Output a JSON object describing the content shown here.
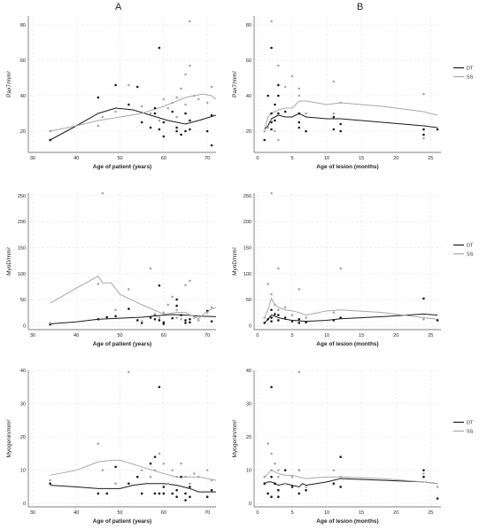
{
  "panels": {
    "left_letter": "A",
    "right_letter": "B"
  },
  "colors": {
    "DT": "#1a1a1a",
    "SS": "#a8a8a8",
    "grid": "#e6e6e6",
    "axis": "#555555",
    "text": "#222222"
  },
  "chart_data": [
    {
      "type": "scatter",
      "column": "A",
      "row": 1,
      "xlabel": "Age of patient (years)",
      "ylabel": "Pax7/mm²",
      "xlim": [
        29,
        72
      ],
      "ylim": [
        8,
        85
      ],
      "xticks": [
        30,
        40,
        50,
        60,
        70
      ],
      "yticks": [
        20,
        40,
        60,
        80
      ],
      "legend": null,
      "series": [
        {
          "name": "DT",
          "kind": "line",
          "x": [
            34,
            40,
            45,
            49,
            53,
            57,
            61,
            65,
            68,
            72
          ],
          "y": [
            15,
            23,
            30,
            33,
            32,
            29,
            26,
            24,
            26,
            29
          ]
        },
        {
          "name": "SS",
          "kind": "line",
          "x": [
            34,
            40,
            45,
            50,
            55,
            60,
            65,
            69,
            71,
            72
          ],
          "y": [
            20,
            23,
            26,
            28,
            30,
            34,
            39,
            41,
            40,
            38
          ]
        },
        {
          "name": "DT",
          "kind": "points",
          "x": [
            34,
            45,
            49,
            52,
            54,
            55,
            57,
            58,
            58,
            59,
            59,
            60,
            60,
            62,
            63,
            63,
            64,
            65,
            65,
            66,
            66,
            70,
            71,
            71
          ],
          "y": [
            15,
            39,
            46,
            35,
            45,
            25,
            22,
            30,
            33,
            67,
            21,
            17,
            25,
            31,
            20,
            22,
            18,
            20,
            30,
            21,
            26,
            20,
            29,
            12
          ]
        },
        {
          "name": "SS",
          "kind": "points",
          "x": [
            34,
            45,
            46,
            49,
            52,
            55,
            57,
            59,
            60,
            61,
            62,
            63,
            63,
            64,
            65,
            65,
            66,
            66,
            67,
            68,
            70,
            71
          ],
          "y": [
            20,
            23,
            28,
            31,
            46,
            34,
            30,
            26,
            38,
            33,
            36,
            28,
            39,
            44,
            35,
            52,
            82,
            57,
            40,
            38,
            36,
            45
          ]
        }
      ]
    },
    {
      "type": "scatter",
      "column": "B",
      "row": 1,
      "xlabel": "Age of lesion (months)",
      "ylabel": "Pax7/mm²",
      "xlim": [
        -0.5,
        26.5
      ],
      "ylim": [
        8,
        85
      ],
      "xticks": [
        0,
        5,
        10,
        15,
        20,
        25
      ],
      "yticks": [
        20,
        40,
        60,
        80
      ],
      "legend": "right",
      "series": [
        {
          "name": "DT",
          "kind": "line",
          "x": [
            1,
            1.5,
            2,
            2.5,
            3,
            4,
            5,
            6,
            7,
            10,
            12,
            18,
            24,
            26
          ],
          "y": [
            21,
            23,
            27,
            28,
            29,
            28,
            28,
            30,
            28,
            27,
            27,
            25,
            23,
            22
          ]
        },
        {
          "name": "SS",
          "kind": "line",
          "x": [
            1,
            1.5,
            2,
            2.5,
            3,
            4,
            5,
            6,
            7,
            10,
            12,
            18,
            24,
            26
          ],
          "y": [
            21,
            28,
            30,
            31,
            32,
            33,
            33,
            37,
            37,
            35,
            36,
            34,
            31,
            29
          ]
        },
        {
          "name": "DT",
          "kind": "points",
          "x": [
            1,
            1.5,
            2,
            2,
            2,
            2,
            2.5,
            2.5,
            3,
            3,
            3,
            4,
            6,
            6,
            6,
            7,
            11,
            11,
            12,
            12,
            24,
            24,
            26
          ],
          "y": [
            15,
            40,
            67,
            30,
            25,
            21,
            35,
            26,
            46,
            40,
            30,
            31,
            30,
            25,
            22,
            20,
            21,
            28,
            20,
            24,
            21,
            18,
            21
          ]
        },
        {
          "name": "SS",
          "kind": "points",
          "x": [
            1,
            1.5,
            2,
            2,
            2.5,
            3,
            3,
            4,
            5,
            6,
            6,
            7,
            11,
            11,
            12,
            24,
            24
          ],
          "y": [
            20,
            22,
            82,
            26,
            20,
            57,
            15,
            45,
            51,
            40,
            44,
            30,
            48,
            30,
            36,
            41,
            16
          ]
        }
      ]
    },
    {
      "type": "scatter",
      "column": "A",
      "row": 2,
      "xlabel": "Age of patient (years)",
      "ylabel": "MyoD/mm²",
      "xlim": [
        29,
        72
      ],
      "ylim": [
        -8,
        255
      ],
      "xticks": [
        30,
        40,
        50,
        60,
        70
      ],
      "yticks": [
        0,
        50,
        100,
        150,
        200,
        250
      ],
      "legend": null,
      "series": [
        {
          "name": "DT",
          "kind": "line",
          "x": [
            34,
            40,
            45,
            50,
            55,
            60,
            62,
            65,
            68,
            72
          ],
          "y": [
            3,
            7,
            12,
            14,
            16,
            20,
            21,
            20,
            18,
            17
          ]
        },
        {
          "name": "SS",
          "kind": "line",
          "x": [
            34,
            40,
            45,
            46,
            48,
            50,
            55,
            60,
            63,
            65,
            68,
            70,
            72
          ],
          "y": [
            43,
            72,
            95,
            82,
            82,
            60,
            40,
            22,
            25,
            25,
            13,
            28,
            35
          ]
        },
        {
          "name": "DT",
          "kind": "points",
          "x": [
            34,
            45,
            47,
            49,
            52,
            54,
            55,
            57,
            58,
            58,
            59,
            59,
            60,
            60,
            62,
            63,
            63,
            64,
            65,
            65,
            66,
            66,
            70,
            71
          ],
          "y": [
            2,
            12,
            16,
            18,
            32,
            10,
            5,
            15,
            20,
            12,
            10,
            77,
            3,
            6,
            14,
            38,
            50,
            20,
            5,
            10,
            6,
            12,
            28,
            8
          ]
        },
        {
          "name": "SS",
          "kind": "points",
          "x": [
            34,
            45,
            46,
            49,
            52,
            55,
            57,
            58,
            59,
            60,
            61,
            62,
            63,
            63,
            64,
            65,
            66,
            66,
            67,
            68,
            70,
            71
          ],
          "y": [
            5,
            80,
            255,
            30,
            70,
            8,
            110,
            22,
            15,
            25,
            40,
            55,
            30,
            15,
            12,
            78,
            86,
            20,
            15,
            10,
            25,
            35
          ]
        }
      ]
    },
    {
      "type": "scatter",
      "column": "B",
      "row": 2,
      "xlabel": "Age of lesion (months)",
      "ylabel": "MyoD/mm²",
      "xlim": [
        -0.5,
        26.5
      ],
      "ylim": [
        -8,
        255
      ],
      "xticks": [
        0,
        5,
        10,
        15,
        20,
        25
      ],
      "yticks": [
        0,
        50,
        100,
        150,
        200,
        250
      ],
      "legend": "right",
      "series": [
        {
          "name": "DT",
          "kind": "line",
          "x": [
            1,
            1.5,
            2,
            2.5,
            3,
            4,
            5,
            6,
            7,
            10,
            12,
            18,
            24,
            26
          ],
          "y": [
            5,
            12,
            20,
            18,
            15,
            12,
            10,
            9,
            8,
            10,
            13,
            17,
            22,
            20
          ]
        },
        {
          "name": "SS",
          "kind": "line",
          "x": [
            1,
            1.5,
            2,
            2.5,
            3,
            4,
            5,
            6,
            7,
            10,
            12,
            18,
            24,
            26
          ],
          "y": [
            15,
            30,
            52,
            40,
            35,
            30,
            28,
            25,
            20,
            28,
            30,
            25,
            15,
            12
          ]
        },
        {
          "name": "DT",
          "kind": "points",
          "x": [
            1,
            1.5,
            2,
            2,
            2,
            2.5,
            3,
            3,
            4,
            5,
            6,
            6,
            7,
            11,
            12,
            24,
            26
          ],
          "y": [
            5,
            12,
            30,
            15,
            8,
            22,
            20,
            10,
            15,
            8,
            5,
            12,
            6,
            10,
            15,
            52,
            10
          ]
        },
        {
          "name": "SS",
          "kind": "points",
          "x": [
            1,
            1.5,
            2,
            2,
            2.5,
            3,
            3,
            4,
            5,
            6,
            7,
            11,
            12,
            24
          ],
          "y": [
            15,
            80,
            255,
            60,
            40,
            110,
            30,
            35,
            20,
            70,
            15,
            25,
            110,
            12
          ]
        }
      ]
    },
    {
      "type": "scatter",
      "column": "A",
      "row": 3,
      "xlabel": "Age of patient (years)",
      "ylabel": "Myogenin/mm²",
      "xlim": [
        29,
        72
      ],
      "ylim": [
        -1,
        40
      ],
      "xticks": [
        30,
        40,
        50,
        60,
        70
      ],
      "yticks": [
        0,
        10,
        20,
        30,
        40
      ],
      "legend": null,
      "series": [
        {
          "name": "DT",
          "kind": "line",
          "x": [
            34,
            40,
            45,
            50,
            53,
            56,
            60,
            63,
            66,
            68,
            72
          ],
          "y": [
            5.5,
            5,
            4.5,
            4.5,
            5.5,
            6,
            6,
            5.5,
            4.5,
            3.5,
            3.5
          ]
        },
        {
          "name": "SS",
          "kind": "line",
          "x": [
            34,
            40,
            45,
            48,
            50,
            55,
            60,
            63,
            65,
            68,
            72
          ],
          "y": [
            8.5,
            10,
            12.5,
            13,
            13,
            11,
            9,
            8,
            8,
            8,
            7
          ]
        },
        {
          "name": "DT",
          "kind": "points",
          "x": [
            34,
            45,
            47,
            49,
            52,
            54,
            55,
            57,
            58,
            58,
            59,
            59,
            60,
            60,
            62,
            63,
            63,
            64,
            65,
            65,
            66,
            66,
            70,
            71
          ],
          "y": [
            6,
            3,
            3,
            11,
            6,
            8,
            3,
            12,
            14,
            3,
            3,
            35,
            3,
            5,
            3,
            4,
            2,
            8,
            1,
            3,
            2,
            5,
            2,
            4
          ]
        },
        {
          "name": "SS",
          "kind": "points",
          "x": [
            34,
            45,
            46,
            49,
            52,
            55,
            57,
            58,
            59,
            60,
            61,
            62,
            63,
            64,
            65,
            66,
            67,
            68,
            70,
            71
          ],
          "y": [
            7,
            18,
            10,
            6,
            39.5,
            10,
            8,
            10,
            15,
            12,
            6,
            10,
            8,
            12,
            8,
            6,
            9,
            8,
            10,
            7
          ]
        }
      ]
    },
    {
      "type": "scatter",
      "column": "B",
      "row": 3,
      "xlabel": "Age of lesion (months)",
      "ylabel": "Myogenin/mm²",
      "xlim": [
        -0.5,
        26.5
      ],
      "ylim": [
        -1,
        40
      ],
      "xticks": [
        0,
        5,
        10,
        15,
        20,
        25
      ],
      "yticks": [
        0,
        10,
        20,
        30,
        40
      ],
      "legend": "right",
      "series": [
        {
          "name": "DT",
          "kind": "line",
          "x": [
            1,
            1.5,
            2,
            2.5,
            3,
            4,
            5,
            6,
            6.5,
            7,
            10,
            12,
            18,
            24,
            26
          ],
          "y": [
            6,
            6.5,
            6.5,
            6,
            5.5,
            6,
            5.5,
            5,
            6,
            5.5,
            6.5,
            7.5,
            7,
            6.5,
            6
          ]
        },
        {
          "name": "SS",
          "kind": "line",
          "x": [
            1,
            1.5,
            2,
            2.5,
            3,
            4,
            5,
            6,
            7,
            10,
            12,
            18,
            24,
            26
          ],
          "y": [
            8,
            9,
            10,
            9.5,
            9,
            8.5,
            8.5,
            8,
            7.5,
            8,
            8,
            7.5,
            6.5,
            6
          ]
        },
        {
          "name": "DT",
          "kind": "points",
          "x": [
            1,
            1.5,
            2,
            2,
            2,
            2.5,
            3,
            3,
            4,
            5,
            6,
            6,
            7,
            11,
            12,
            12,
            24,
            24,
            26
          ],
          "y": [
            6,
            3,
            35,
            8,
            2,
            6,
            4,
            2,
            10,
            5,
            10,
            3,
            4,
            6,
            14,
            5,
            10,
            8,
            1.5
          ]
        },
        {
          "name": "SS",
          "kind": "points",
          "x": [
            1,
            1.5,
            2,
            2,
            2.5,
            3,
            3,
            4,
            5,
            6,
            6,
            7,
            11,
            12,
            24,
            26
          ],
          "y": [
            8,
            18,
            15,
            10,
            12,
            10,
            8,
            6,
            8,
            39.5,
            10,
            5,
            10,
            8,
            9,
            5
          ]
        }
      ]
    }
  ]
}
